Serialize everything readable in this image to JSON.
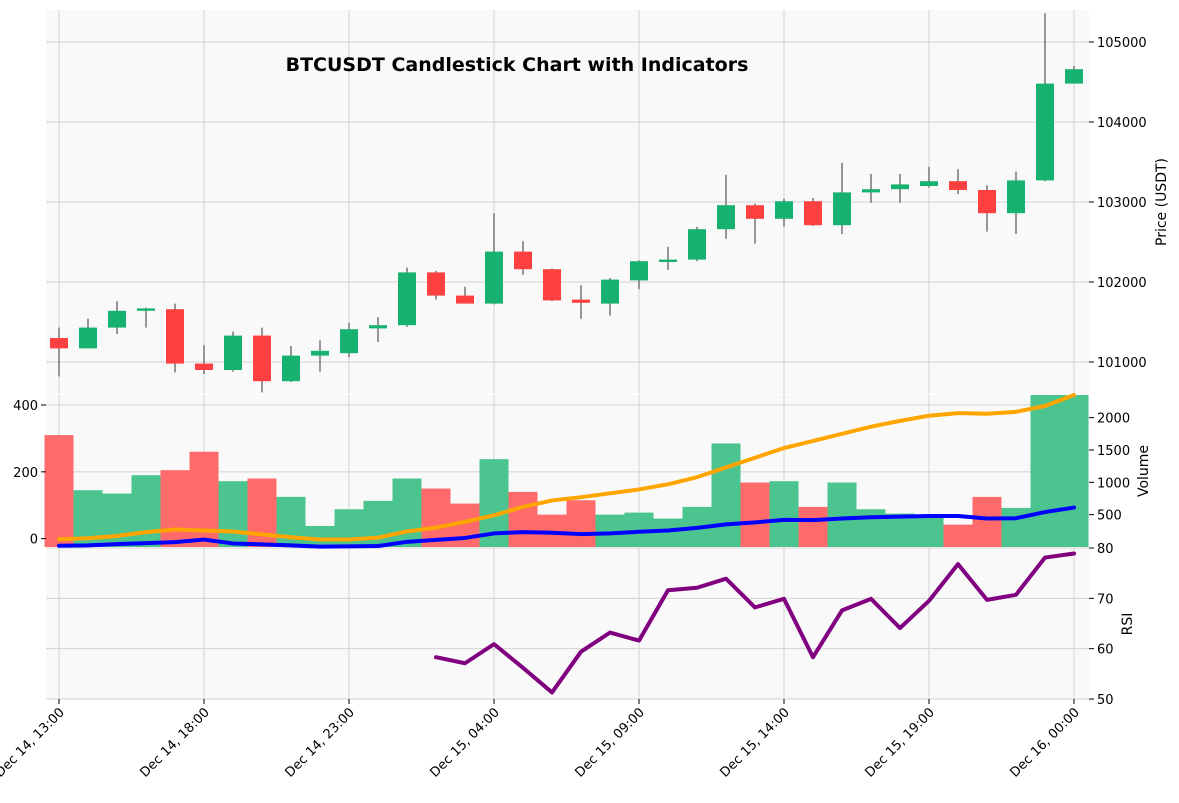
{
  "chart_data": {
    "type": "candlestick",
    "title": "BTCUSDT Candlestick Chart with Indicators",
    "colors": {
      "up": "#17b26f",
      "down": "#ff4040",
      "volume_up": "#4bc48f",
      "volume_down": "#ff6b6b",
      "ma_volume_fast": "#0000ff",
      "ma_volume_slow": "#ffa500",
      "rsi": "#800080",
      "grid": "#d3d3d3",
      "panel_bg": "#f9f9f9"
    },
    "x_tick_labels": [
      "Dec 14, 13:00",
      "Dec 14, 18:00",
      "Dec 14, 23:00",
      "Dec 15, 04:00",
      "Dec 15, 09:00",
      "Dec 15, 14:00",
      "Dec 15, 19:00",
      "Dec 16, 00:00"
    ],
    "x_tick_bar_index": [
      0,
      5,
      10,
      15,
      20,
      25,
      30,
      35
    ],
    "price_panel": {
      "ylabel": "Price (USDT)",
      "ylim": [
        100600,
        105400
      ],
      "yticks": [
        101000,
        102000,
        103000,
        104000,
        105000
      ],
      "ytick_labels": [
        "101000",
        "102000",
        "103000",
        "104000",
        "105000"
      ],
      "candles": [
        {
          "o": 101300,
          "h": 101430,
          "l": 100820,
          "c": 101170
        },
        {
          "o": 101170,
          "h": 101540,
          "l": 101170,
          "c": 101430
        },
        {
          "o": 101430,
          "h": 101760,
          "l": 101350,
          "c": 101640
        },
        {
          "o": 101640,
          "h": 101680,
          "l": 101430,
          "c": 101670
        },
        {
          "o": 101660,
          "h": 101730,
          "l": 100870,
          "c": 100980
        },
        {
          "o": 100980,
          "h": 101210,
          "l": 100850,
          "c": 100900
        },
        {
          "o": 100900,
          "h": 101380,
          "l": 100880,
          "c": 101330
        },
        {
          "o": 101330,
          "h": 101430,
          "l": 100620,
          "c": 100760
        },
        {
          "o": 100760,
          "h": 101200,
          "l": 100750,
          "c": 101080
        },
        {
          "o": 101080,
          "h": 101270,
          "l": 100880,
          "c": 101140
        },
        {
          "o": 101110,
          "h": 101490,
          "l": 101060,
          "c": 101410
        },
        {
          "o": 101420,
          "h": 101560,
          "l": 101250,
          "c": 101460
        },
        {
          "o": 101460,
          "h": 102180,
          "l": 101440,
          "c": 102120
        },
        {
          "o": 102120,
          "h": 102140,
          "l": 101780,
          "c": 101830
        },
        {
          "o": 101830,
          "h": 101940,
          "l": 101730,
          "c": 101730
        },
        {
          "o": 101730,
          "h": 102860,
          "l": 101720,
          "c": 102380
        },
        {
          "o": 102380,
          "h": 102510,
          "l": 102090,
          "c": 102160
        },
        {
          "o": 102160,
          "h": 102170,
          "l": 101760,
          "c": 101770
        },
        {
          "o": 101780,
          "h": 101960,
          "l": 101540,
          "c": 101740
        },
        {
          "o": 101730,
          "h": 102050,
          "l": 101580,
          "c": 102030
        },
        {
          "o": 102020,
          "h": 102270,
          "l": 101910,
          "c": 102260
        },
        {
          "o": 102250,
          "h": 102440,
          "l": 102150,
          "c": 102280
        },
        {
          "o": 102280,
          "h": 102690,
          "l": 102260,
          "c": 102660
        },
        {
          "o": 102660,
          "h": 103340,
          "l": 102540,
          "c": 102960
        },
        {
          "o": 102960,
          "h": 102980,
          "l": 102480,
          "c": 102790
        },
        {
          "o": 102790,
          "h": 103040,
          "l": 102690,
          "c": 103010
        },
        {
          "o": 103010,
          "h": 103050,
          "l": 102700,
          "c": 102710
        },
        {
          "o": 102710,
          "h": 103490,
          "l": 102600,
          "c": 103120
        },
        {
          "o": 103120,
          "h": 103350,
          "l": 102990,
          "c": 103160
        },
        {
          "o": 103160,
          "h": 103350,
          "l": 102990,
          "c": 103220
        },
        {
          "o": 103200,
          "h": 103440,
          "l": 103180,
          "c": 103260
        },
        {
          "o": 103260,
          "h": 103410,
          "l": 103100,
          "c": 103150
        },
        {
          "o": 103150,
          "h": 103210,
          "l": 102630,
          "c": 102860
        },
        {
          "o": 102860,
          "h": 103380,
          "l": 102600,
          "c": 103270
        },
        {
          "o": 103270,
          "h": 105360,
          "l": 103260,
          "c": 104480
        },
        {
          "o": 104480,
          "h": 104700,
          "l": 104480,
          "c": 104660
        }
      ]
    },
    "volume_panel": {
      "ylabel": "Volume",
      "ylim_left": [
        -25,
        430
      ],
      "yticks_left": [
        0,
        200,
        400
      ],
      "ytick_labels_left": [
        "0",
        "200",
        "400"
      ],
      "ylim_right": [
        0,
        2350
      ],
      "yticks_right": [
        500,
        1000,
        1500,
        2000
      ],
      "ytick_labels_right": [
        "500",
        "1000",
        "1500",
        "2000"
      ],
      "volumes": [
        310,
        145,
        135,
        190,
        205,
        260,
        172,
        180,
        125,
        38,
        88,
        113,
        180,
        150,
        105,
        238,
        140,
        72,
        115,
        72,
        78,
        60,
        95,
        285,
        168,
        172,
        95,
        168,
        88,
        75,
        65,
        42,
        125,
        92,
        440,
        460
      ],
      "series": [
        {
          "name": "",
          "color": "#0000ff",
          "values": [
            20,
            25,
            45,
            60,
            75,
            115,
            55,
            40,
            25,
            5,
            10,
            15,
            80,
            110,
            140,
            210,
            230,
            220,
            200,
            210,
            235,
            255,
            295,
            350,
            380,
            420,
            415,
            440,
            460,
            470,
            480,
            480,
            440,
            445,
            540,
            610
          ]
        },
        {
          "name": "",
          "color": "#ffa500",
          "values": [
            120,
            135,
            170,
            230,
            270,
            255,
            240,
            195,
            150,
            115,
            115,
            145,
            240,
            300,
            390,
            490,
            620,
            720,
            770,
            830,
            890,
            970,
            1080,
            1230,
            1380,
            1530,
            1640,
            1750,
            1860,
            1950,
            2030,
            2070,
            2060,
            2090,
            2180,
            2350
          ]
        }
      ]
    },
    "rsi_panel": {
      "ylabel": "RSI",
      "ylim": [
        50,
        80
      ],
      "yticks": [
        50,
        60,
        70,
        80
      ],
      "ytick_labels": [
        "50",
        "60",
        "70",
        "80"
      ],
      "start_index": 13,
      "values": [
        58.3,
        57.1,
        60.9,
        56.2,
        51.3,
        59.4,
        63.2,
        61.6,
        71.6,
        72.1,
        73.9,
        68.2,
        69.9,
        58.3,
        67.6,
        69.9,
        64.1,
        69.5,
        76.8,
        69.7,
        70.7,
        78.1,
        78.9
      ]
    }
  }
}
